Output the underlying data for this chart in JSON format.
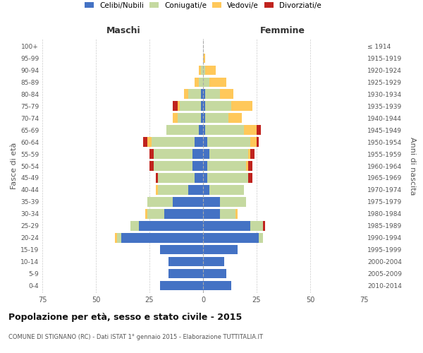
{
  "age_groups": [
    "0-4",
    "5-9",
    "10-14",
    "15-19",
    "20-24",
    "25-29",
    "30-34",
    "35-39",
    "40-44",
    "45-49",
    "50-54",
    "55-59",
    "60-64",
    "65-69",
    "70-74",
    "75-79",
    "80-84",
    "85-89",
    "90-94",
    "95-99",
    "100+"
  ],
  "birth_years": [
    "2010-2014",
    "2005-2009",
    "2000-2004",
    "1995-1999",
    "1990-1994",
    "1985-1989",
    "1980-1984",
    "1975-1979",
    "1970-1974",
    "1965-1969",
    "1960-1964",
    "1955-1959",
    "1950-1954",
    "1945-1949",
    "1940-1944",
    "1935-1939",
    "1930-1934",
    "1925-1929",
    "1920-1924",
    "1915-1919",
    "≤ 1914"
  ],
  "maschi": {
    "celibi": [
      20,
      16,
      16,
      20,
      38,
      30,
      18,
      14,
      7,
      4,
      5,
      5,
      4,
      2,
      1,
      1,
      1,
      0,
      0,
      0,
      0
    ],
    "coniugati": [
      0,
      0,
      0,
      0,
      2,
      4,
      8,
      12,
      14,
      17,
      18,
      18,
      20,
      15,
      11,
      10,
      6,
      2,
      1,
      0,
      0
    ],
    "vedovi": [
      0,
      0,
      0,
      0,
      1,
      0,
      1,
      0,
      1,
      0,
      0,
      0,
      2,
      0,
      2,
      1,
      2,
      2,
      1,
      0,
      0
    ],
    "divorziati": [
      0,
      0,
      0,
      0,
      0,
      0,
      0,
      0,
      0,
      1,
      2,
      2,
      2,
      0,
      0,
      2,
      0,
      0,
      0,
      0,
      0
    ]
  },
  "femmine": {
    "nubili": [
      13,
      11,
      10,
      16,
      26,
      22,
      8,
      8,
      3,
      2,
      2,
      3,
      2,
      1,
      1,
      1,
      1,
      0,
      0,
      0,
      0
    ],
    "coniugate": [
      0,
      0,
      0,
      0,
      2,
      6,
      7,
      12,
      16,
      19,
      18,
      18,
      20,
      18,
      11,
      12,
      7,
      3,
      1,
      0,
      0
    ],
    "vedove": [
      0,
      0,
      0,
      0,
      0,
      0,
      1,
      0,
      0,
      0,
      1,
      1,
      3,
      6,
      6,
      10,
      6,
      8,
      5,
      1,
      0
    ],
    "divorziate": [
      0,
      0,
      0,
      0,
      0,
      1,
      0,
      0,
      0,
      2,
      2,
      2,
      1,
      2,
      0,
      0,
      0,
      0,
      0,
      0,
      0
    ]
  },
  "colors": {
    "celibi_nubili": "#4472c4",
    "coniugati": "#c5d9a0",
    "vedovi": "#ffc85a",
    "divorziati": "#c0231e"
  },
  "title": "Popolazione per età, sesso e stato civile - 2015",
  "subtitle": "COMUNE DI STIGNANO (RC) - Dati ISTAT 1° gennaio 2015 - Elaborazione TUTTITALIA.IT",
  "xlabel_left": "Maschi",
  "xlabel_right": "Femmine",
  "ylabel_left": "Fasce di età",
  "ylabel_right": "Anni di nascita",
  "xlim": 75,
  "bg_color": "#ffffff",
  "grid_color": "#cccccc"
}
